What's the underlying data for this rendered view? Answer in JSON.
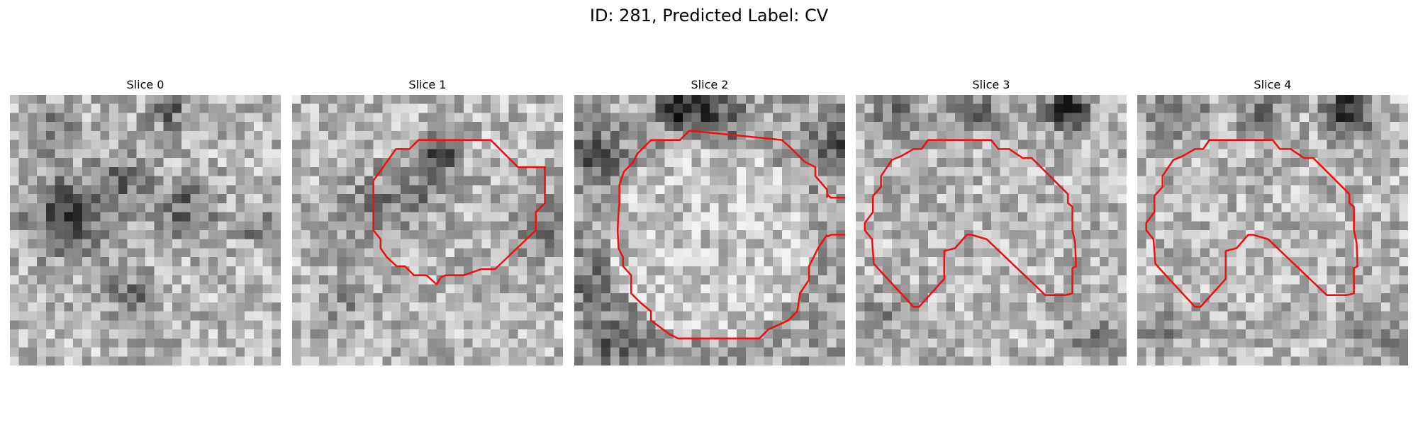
{
  "figure": {
    "title": "ID: 281, Predicted Label: CV"
  },
  "panels": [
    {
      "title": "Slice 0",
      "has_contour": false
    },
    {
      "title": "Slice 1",
      "has_contour": true
    },
    {
      "title": "Slice 2",
      "has_contour": true
    },
    {
      "title": "Slice 3",
      "has_contour": true
    },
    {
      "title": "Slice 4",
      "has_contour": true
    }
  ],
  "colors": {
    "contour": "#ee1111",
    "background": "#ffffff"
  }
}
